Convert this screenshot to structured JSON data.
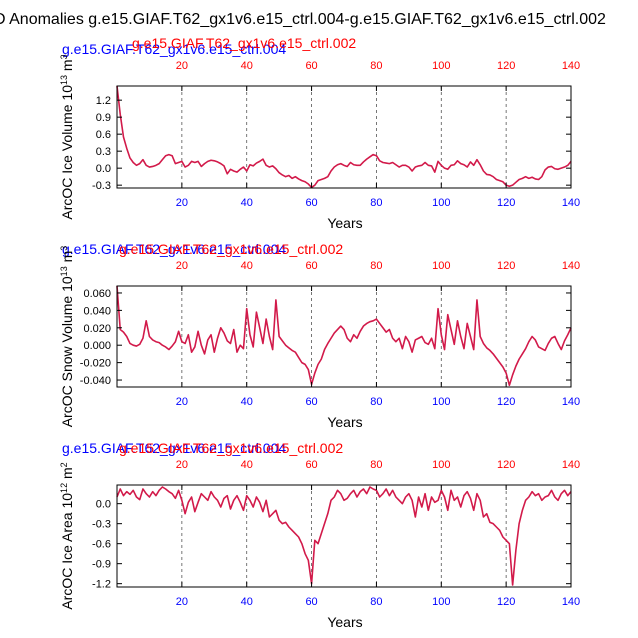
{
  "figure": {
    "title": "D Anomalies g.e15.GIAF.T62_gx1v6.e15_ctrl.004-g.e15.GIAF.T62_gx1v6.e15_ctrl.002"
  },
  "colors": {
    "series_line": "#d21a4a",
    "top_red": "#ff0000",
    "top_blue": "#0000ff",
    "tick_blue": "#0000ff",
    "tick_red": "#ff0000",
    "axis": "#000000",
    "grid": "#555555"
  },
  "chart_data": [
    {
      "type": "line",
      "title": "",
      "top_title_red": "g.e15.GIAF.T62_gx1v6.e15_ctrl.002",
      "top_title_blue": "g.e15.GIAF.T62_gx1v6.e15_ctrl.004",
      "ylabel": "ArcOC Ice Volume 10",
      "ylabel_exp": "13",
      "ylabel_unit": " m",
      "ylabel_unit_exp": "3",
      "xlabel": "Years",
      "xlim": [
        0,
        140
      ],
      "ylim": [
        -0.35,
        1.45
      ],
      "yticks": [
        -0.3,
        0.0,
        0.3,
        0.6,
        0.9,
        1.2
      ],
      "ytick_labels": [
        "-0.3",
        "0.0",
        "0.3",
        "0.6",
        "0.9",
        "1.2"
      ],
      "xticks": [
        20,
        40,
        60,
        80,
        100,
        120,
        140
      ],
      "xtick_labels": [
        "20",
        "40",
        "60",
        "80",
        "100",
        "120",
        "140"
      ],
      "grid_x": [
        20,
        40,
        60,
        80,
        100,
        120
      ],
      "x": [
        0,
        1,
        2,
        3,
        4,
        5,
        6,
        7,
        8,
        9,
        10,
        11,
        12,
        13,
        14,
        15,
        16,
        17,
        18,
        19,
        20,
        21,
        22,
        23,
        24,
        25,
        26,
        27,
        28,
        29,
        30,
        31,
        32,
        33,
        34,
        35,
        36,
        37,
        38,
        39,
        40,
        41,
        42,
        43,
        44,
        45,
        46,
        47,
        48,
        49,
        50,
        51,
        52,
        53,
        54,
        55,
        56,
        57,
        58,
        59,
        60,
        61,
        62,
        63,
        64,
        65,
        66,
        67,
        68,
        69,
        70,
        71,
        72,
        73,
        74,
        75,
        76,
        77,
        78,
        79,
        80,
        81,
        82,
        83,
        84,
        85,
        86,
        87,
        88,
        89,
        90,
        91,
        92,
        93,
        94,
        95,
        96,
        97,
        98,
        99,
        100,
        101,
        102,
        103,
        104,
        105,
        106,
        107,
        108,
        109,
        110,
        111,
        112,
        113,
        114,
        115,
        116,
        117,
        118,
        119,
        120,
        121,
        122,
        123,
        124,
        125,
        126,
        127,
        128,
        129,
        130,
        131,
        132,
        133,
        134,
        135,
        136,
        137,
        138,
        139,
        140
      ],
      "values": [
        1.45,
        0.95,
        0.55,
        0.35,
        0.18,
        0.1,
        0.05,
        0.08,
        0.15,
        0.05,
        0.02,
        0.03,
        0.05,
        0.08,
        0.15,
        0.22,
        0.24,
        0.22,
        0.08,
        0.1,
        0.12,
        0.02,
        0.05,
        0.12,
        0.1,
        0.12,
        0.03,
        0.08,
        0.12,
        0.14,
        0.13,
        0.11,
        0.08,
        0.04,
        -0.1,
        -0.02,
        -0.05,
        -0.07,
        -0.02,
        0.02,
        -0.05,
        0.06,
        0.04,
        0.09,
        0.12,
        0.16,
        0.05,
        0.02,
        0.04,
        -0.01,
        -0.08,
        -0.12,
        -0.15,
        -0.13,
        -0.18,
        -0.15,
        -0.19,
        -0.22,
        -0.24,
        -0.28,
        -0.34,
        -0.3,
        -0.22,
        -0.2,
        -0.18,
        -0.15,
        -0.05,
        0.02,
        0.06,
        0.08,
        0.05,
        0.03,
        0.1,
        0.06,
        0.05,
        0.05,
        0.11,
        0.16,
        0.2,
        0.24,
        0.22,
        0.13,
        0.1,
        0.09,
        0.08,
        0.1,
        0.06,
        0.02,
        0.05,
        0.05,
        0.02,
        -0.05,
        0.02,
        0.04,
        0.05,
        0.1,
        0.05,
        0.04,
        -0.07,
        0.12,
        0.05,
        0.0,
        -0.02,
        0.05,
        0.06,
        0.13,
        0.08,
        0.06,
        0.02,
        0.11,
        0.05,
        0.15,
        0.06,
        -0.05,
        -0.11,
        -0.12,
        -0.15,
        -0.2,
        -0.22,
        -0.24,
        -0.3,
        -0.32,
        -0.3,
        -0.25,
        -0.2,
        -0.18,
        -0.15,
        -0.18,
        -0.16,
        -0.19,
        -0.2,
        -0.15,
        -0.03,
        0.02,
        0.03,
        -0.01,
        -0.02,
        0.0,
        0.02,
        0.05,
        0.12
      ]
    },
    {
      "type": "line",
      "title": "",
      "top_title_red": "g.e15.GIAF.T62_gx1v6.e15_ctrl.002",
      "top_title_blue": "g.e15.GIAF.T62_gx1v6.e15_ctrl.004",
      "ylabel": "ArcOC Snow Volume 10",
      "ylabel_exp": "13",
      "ylabel_unit": " m",
      "ylabel_unit_exp": "3",
      "xlabel": "Years",
      "xlim": [
        0,
        140
      ],
      "ylim": [
        -0.048,
        0.068
      ],
      "yticks": [
        -0.04,
        -0.02,
        0.0,
        0.02,
        0.04,
        0.06
      ],
      "ytick_labels": [
        "-0.040",
        "-0.020",
        "0.000",
        "0.020",
        "0.040",
        "0.060"
      ],
      "xticks": [
        20,
        40,
        60,
        80,
        100,
        120,
        140
      ],
      "xtick_labels": [
        "20",
        "40",
        "60",
        "80",
        "100",
        "120",
        "140"
      ],
      "grid_x": [
        20,
        40,
        60,
        80,
        100,
        120
      ],
      "x": [
        0,
        1,
        2,
        3,
        4,
        5,
        6,
        7,
        8,
        9,
        10,
        11,
        12,
        13,
        14,
        15,
        16,
        17,
        18,
        19,
        20,
        21,
        22,
        23,
        24,
        25,
        26,
        27,
        28,
        29,
        30,
        31,
        32,
        33,
        34,
        35,
        36,
        37,
        38,
        39,
        40,
        41,
        42,
        43,
        44,
        45,
        46,
        47,
        48,
        49,
        50,
        51,
        52,
        53,
        54,
        55,
        56,
        57,
        58,
        59,
        60,
        61,
        62,
        63,
        64,
        65,
        66,
        67,
        68,
        69,
        70,
        71,
        72,
        73,
        74,
        75,
        76,
        77,
        78,
        79,
        80,
        81,
        82,
        83,
        84,
        85,
        86,
        87,
        88,
        89,
        90,
        91,
        92,
        93,
        94,
        95,
        96,
        97,
        98,
        99,
        100,
        101,
        102,
        103,
        104,
        105,
        106,
        107,
        108,
        109,
        110,
        111,
        112,
        113,
        114,
        115,
        116,
        117,
        118,
        119,
        120,
        121,
        122,
        123,
        124,
        125,
        126,
        127,
        128,
        129,
        130,
        131,
        132,
        133,
        134,
        135,
        136,
        137,
        138,
        139,
        140
      ],
      "values": [
        0.068,
        0.018,
        0.015,
        0.01,
        0.002,
        0.0,
        -0.001,
        0.001,
        0.008,
        0.028,
        0.01,
        0.006,
        0.004,
        0.003,
        0.0,
        -0.002,
        -0.005,
        -0.001,
        0.004,
        0.016,
        0.004,
        0.002,
        0.012,
        -0.008,
        -0.002,
        0.016,
        0.0,
        -0.01,
        0.006,
        0.012,
        -0.008,
        0.008,
        0.02,
        0.014,
        0.005,
        0.002,
        0.018,
        -0.008,
        0.0,
        -0.004,
        0.042,
        0.012,
        -0.002,
        0.038,
        0.02,
        0.002,
        0.03,
        0.01,
        -0.005,
        0.052,
        0.01,
        0.005,
        0.0,
        -0.003,
        -0.006,
        -0.008,
        -0.014,
        -0.02,
        -0.022,
        -0.028,
        -0.045,
        -0.032,
        -0.022,
        -0.016,
        -0.005,
        0.002,
        0.008,
        0.014,
        0.018,
        0.022,
        0.018,
        0.008,
        0.004,
        0.012,
        0.008,
        0.016,
        0.022,
        0.025,
        0.027,
        0.028,
        0.03,
        0.025,
        0.02,
        0.015,
        0.018,
        0.008,
        0.004,
        0.008,
        -0.004,
        0.01,
        0.004,
        -0.008,
        0.006,
        0.008,
        0.01,
        0.003,
        0.001,
        0.008,
        -0.004,
        0.042,
        0.012,
        -0.005,
        0.035,
        0.018,
        0.001,
        0.028,
        0.01,
        -0.004,
        0.025,
        0.01,
        -0.005,
        0.052,
        0.01,
        0.002,
        -0.003,
        -0.006,
        -0.01,
        -0.015,
        -0.02,
        -0.025,
        -0.032,
        -0.046,
        -0.034,
        -0.024,
        -0.016,
        -0.01,
        -0.004,
        0.004,
        0.01,
        0.006,
        -0.002,
        -0.004,
        -0.006,
        0.002,
        0.008,
        0.01,
        0.002,
        -0.005,
        0.005,
        0.012,
        0.02
      ]
    },
    {
      "type": "line",
      "title": "",
      "top_title_red": "g.e15.GIAF.T62_gx1v6.e15_ctrl.002",
      "top_title_blue": "g.e15.GIAF.T62_gx1v6.e15_ctrl.004",
      "ylabel": "ArcOC Ice Area 10",
      "ylabel_exp": "12",
      "ylabel_unit": " m",
      "ylabel_unit_exp": "2",
      "xlabel": "Years",
      "xlim": [
        0,
        140
      ],
      "ylim": [
        -1.25,
        0.28
      ],
      "yticks": [
        -1.2,
        -0.9,
        -0.6,
        -0.3,
        0.0
      ],
      "ytick_labels": [
        "-1.2",
        "-0.9",
        "-0.6",
        "-0.3",
        "0.0"
      ],
      "xticks": [
        20,
        40,
        60,
        80,
        100,
        120,
        140
      ],
      "xtick_labels": [
        "20",
        "40",
        "60",
        "80",
        "100",
        "120",
        "140"
      ],
      "grid_x": [
        20,
        40,
        60,
        80,
        100,
        120
      ],
      "x": [
        0,
        1,
        2,
        3,
        4,
        5,
        6,
        7,
        8,
        9,
        10,
        11,
        12,
        13,
        14,
        15,
        16,
        17,
        18,
        19,
        20,
        21,
        22,
        23,
        24,
        25,
        26,
        27,
        28,
        29,
        30,
        31,
        32,
        33,
        34,
        35,
        36,
        37,
        38,
        39,
        40,
        41,
        42,
        43,
        44,
        45,
        46,
        47,
        48,
        49,
        50,
        51,
        52,
        53,
        54,
        55,
        56,
        57,
        58,
        59,
        60,
        61,
        62,
        63,
        64,
        65,
        66,
        67,
        68,
        69,
        70,
        71,
        72,
        73,
        74,
        75,
        76,
        77,
        78,
        79,
        80,
        81,
        82,
        83,
        84,
        85,
        86,
        87,
        88,
        89,
        90,
        91,
        92,
        93,
        94,
        95,
        96,
        97,
        98,
        99,
        100,
        101,
        102,
        103,
        104,
        105,
        106,
        107,
        108,
        109,
        110,
        111,
        112,
        113,
        114,
        115,
        116,
        117,
        118,
        119,
        120,
        121,
        122,
        123,
        124,
        125,
        126,
        127,
        128,
        129,
        130,
        131,
        132,
        133,
        134,
        135,
        136,
        137,
        138,
        139,
        140
      ],
      "values": [
        0.1,
        0.22,
        0.12,
        0.18,
        0.14,
        0.2,
        0.1,
        0.06,
        0.22,
        0.15,
        0.1,
        0.18,
        0.12,
        0.2,
        0.25,
        0.22,
        0.18,
        0.15,
        0.08,
        0.2,
        0.05,
        -0.15,
        0.02,
        0.1,
        -0.12,
        0.02,
        0.15,
        0.1,
        0.05,
        0.18,
        0.1,
        0.05,
        -0.05,
        0.08,
        0.12,
        -0.08,
        0.05,
        0.12,
        0.02,
        -0.1,
        0.12,
        0.05,
        -0.05,
        0.1,
        0.02,
        -0.12,
        0.05,
        -0.2,
        -0.15,
        -0.1,
        -0.25,
        -0.3,
        -0.28,
        -0.35,
        -0.4,
        -0.45,
        -0.5,
        -0.6,
        -0.75,
        -0.85,
        -1.2,
        -0.55,
        -0.6,
        -0.45,
        -0.3,
        -0.15,
        0.05,
        0.1,
        0.2,
        0.15,
        0.05,
        0.08,
        0.15,
        0.2,
        0.1,
        0.18,
        0.22,
        0.15,
        0.25,
        0.22,
        0.2,
        0.1,
        0.15,
        0.22,
        0.12,
        0.2,
        0.1,
        0.05,
        0.0,
        0.1,
        0.15,
        0.05,
        -0.2,
        0.1,
        -0.05,
        0.15,
        -0.1,
        0.1,
        0.02,
        0.05,
        0.2,
        0.1,
        -0.1,
        0.2,
        0.05,
        0.1,
        -0.05,
        0.12,
        0.18,
        0.08,
        -0.1,
        0.15,
        0.05,
        -0.2,
        -0.15,
        -0.28,
        -0.3,
        -0.35,
        -0.4,
        -0.5,
        -0.55,
        -0.6,
        -1.22,
        -0.7,
        -0.3,
        -0.1,
        0.05,
        0.1,
        0.18,
        0.12,
        0.15,
        0.05,
        0.1,
        0.12,
        0.2,
        0.1,
        0.05,
        0.15,
        0.2,
        0.12,
        0.18
      ]
    }
  ]
}
